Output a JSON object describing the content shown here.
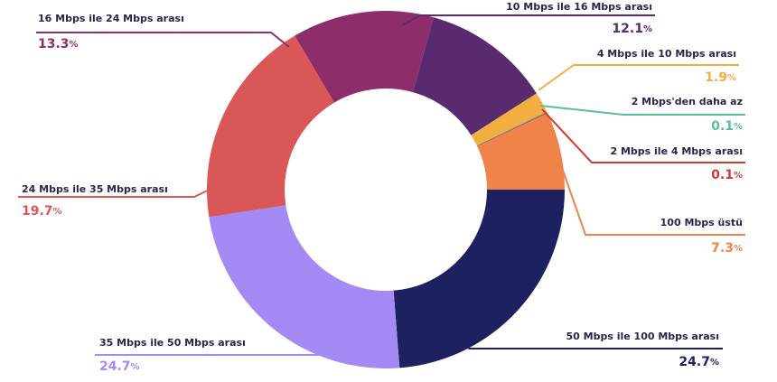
{
  "chart_data": {
    "type": "pie",
    "donut": true,
    "categories": [
      "50 Mbps ile 100 Mbps arası",
      "35 Mbps ile 50 Mbps arası",
      "24 Mbps ile 35 Mbps arası",
      "16 Mbps ile 24 Mbps arası",
      "10 Mbps ile 16 Mbps arası",
      "4 Mbps ile 10 Mbps arası",
      "2 Mbps'den daha az",
      "2 Mbps ile 4 Mbps arası",
      "100 Mbps üstü"
    ],
    "values": [
      24.7,
      24.7,
      19.7,
      13.3,
      12.1,
      1.9,
      0.1,
      0.1,
      7.3
    ],
    "value_labels": [
      "24.7%",
      "24.7%",
      "19.7%",
      "13.3%",
      "12.1%",
      "1.9%",
      "0.1%",
      "0.1%",
      "7.3%"
    ],
    "colors": [
      "#1e2160",
      "#a48af5",
      "#d95757",
      "#8e2d6b",
      "#5a2a6e",
      "#f2ae3f",
      "#5cbf9a",
      "#d23a2e",
      "#f0834a"
    ]
  }
}
